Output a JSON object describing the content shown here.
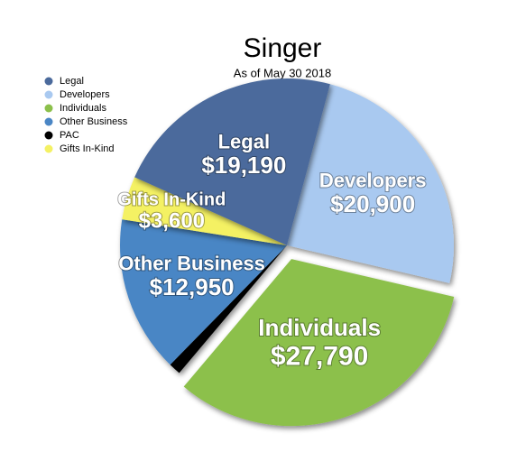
{
  "chart_data": {
    "type": "pie",
    "title": "Singer",
    "subtitle": "As of May 30 2018",
    "categories": [
      "Developers",
      "Individuals",
      "PAC",
      "Other Business",
      "Gifts In-Kind",
      "Legal"
    ],
    "values": [
      20900,
      27790,
      1000,
      12950,
      3600,
      19190
    ],
    "value_labels": [
      "$20,900",
      "$27,790",
      null,
      "$12,950",
      "$3,600",
      "$19,190"
    ],
    "colors": [
      "#a9c9f0",
      "#8cc04b",
      "#000000",
      "#4a86c5",
      "#f4f164",
      "#4b6a9c"
    ],
    "exploded": "Individuals",
    "legend_order": [
      "Legal",
      "Developers",
      "Individuals",
      "Other Business",
      "PAC",
      "Gifts In-Kind"
    ],
    "legend": "top-left"
  }
}
